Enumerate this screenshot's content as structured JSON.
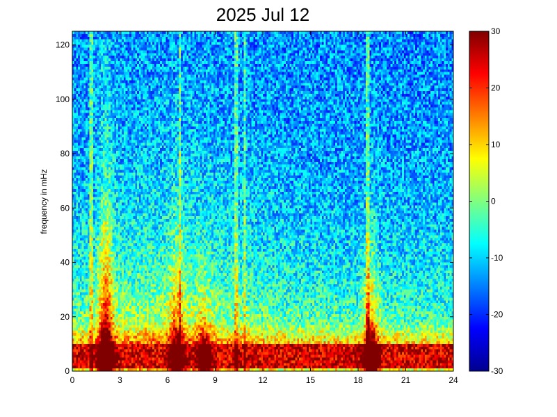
{
  "chart_data": {
    "type": "heatmap",
    "title": "2025 Jul 12",
    "xlabel": "",
    "ylabel": "frequency in mHz",
    "xlim": [
      0,
      24
    ],
    "ylim": [
      0,
      125
    ],
    "xticks": [
      "0",
      "3",
      "6",
      "9",
      "12",
      "15",
      "18",
      "21",
      "24"
    ],
    "yticks": [
      "0",
      "20",
      "40",
      "60",
      "80",
      "100",
      "120"
    ],
    "colorbar": {
      "range": [
        -30,
        30
      ],
      "ticks": [
        "30",
        "20",
        "10",
        "0",
        "-10",
        "-20",
        "-30"
      ],
      "colormap": "jet"
    },
    "features": {
      "background_level_high_freq": -15,
      "low_freq_band_level": 25,
      "bursts": [
        {
          "center_hour": 2.1,
          "peak_level": 27,
          "reach_mhz": 80
        },
        {
          "center_hour": 6.6,
          "peak_level": 12,
          "reach_mhz": 60
        },
        {
          "center_hour": 8.3,
          "peak_level": 15,
          "reach_mhz": 30
        },
        {
          "center_hour": 18.8,
          "peak_level": 27,
          "reach_mhz": 45
        }
      ],
      "vertical_stripes_hours": [
        1.2,
        6.8,
        10.3,
        10.9,
        18.6
      ]
    }
  }
}
